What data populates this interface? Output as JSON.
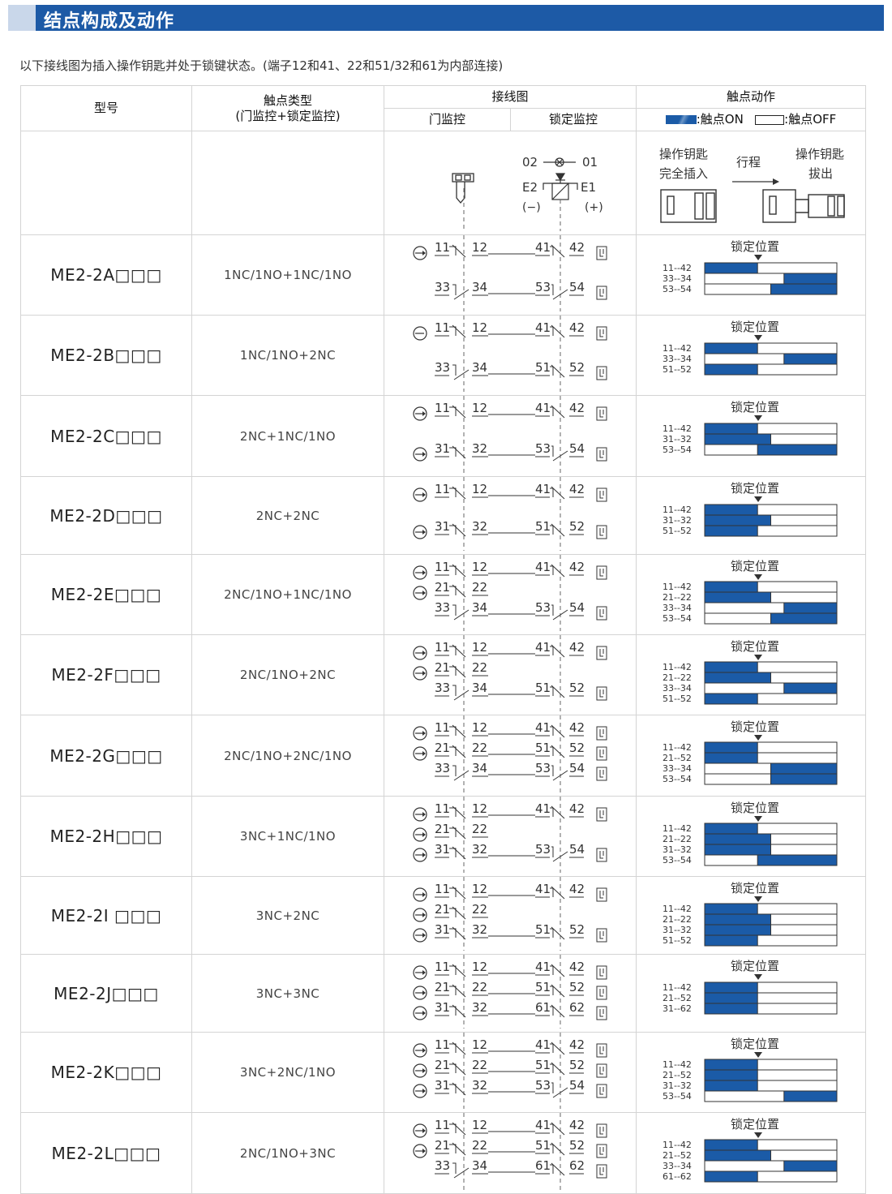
{
  "title": "结点构成及动作",
  "intro": "以下接线图为插入操作钥匙并处于锁键状态。(端子12和41、22和51/32和61为内部连接)",
  "header": {
    "model": "型号",
    "contact_type_1": "触点类型",
    "contact_type_2": "(门监控+锁定监控)",
    "wiring": "接线图",
    "door_monitor": "门监控",
    "lock_monitor": "锁定监控",
    "action": "触点动作",
    "legend_on": ":触点ON",
    "legend_off": ":触点OFF"
  },
  "diagram_header": {
    "t02": "02",
    "t01": "01",
    "e2": "E2",
    "e1": "E1",
    "minus": "(−)",
    "plus": "(+)",
    "key_inserted_1": "操作钥匙",
    "key_inserted_2": "完全插入",
    "stroke": "行程",
    "key_removed_1": "操作钥匙",
    "key_removed_2": "拔出"
  },
  "lock_position": "锁定位置",
  "rows": [
    {
      "model": "ME2-2A□□□",
      "type": "1NC/1NO+1NC/1NO",
      "lines": [
        {
          "door": "11 12",
          "sym": "nc",
          "lock": "41 42",
          "lsym": "nc"
        },
        {
          "door": "33 34",
          "sym": "no",
          "lock": "53 54",
          "lsym": "no"
        }
      ],
      "labels": [
        "11--42",
        "33--34",
        "53--54"
      ],
      "bars": [
        [
          0,
          0.4
        ],
        [
          0.6,
          1
        ],
        [
          0.5,
          1
        ]
      ]
    },
    {
      "model": "ME2-2B□□□",
      "type": "1NC/1NO+2NC",
      "lines": [
        {
          "door": "11 12",
          "sym": "nc",
          "lock": "41 42",
          "lsym": "nc"
        },
        {
          "door": "33 34",
          "sym": "no",
          "lock": "51 52",
          "lsym": "nc"
        }
      ],
      "labels": [
        "11--42",
        "33--34",
        "51--52"
      ],
      "bars": [
        [
          0,
          0.4
        ],
        [
          0.6,
          1
        ],
        [
          0,
          0.4
        ]
      ]
    },
    {
      "model": "ME2-2C□□□",
      "type": "2NC+1NC/1NO",
      "lines": [
        {
          "door": "11 12",
          "sym": "nc",
          "lock": "41 42",
          "lsym": "nc"
        },
        {
          "door": "31 32",
          "sym": "nc",
          "lock": "53 54",
          "lsym": "no"
        }
      ],
      "labels": [
        "11--42",
        "31--32",
        "53--54"
      ],
      "bars": [
        [
          0,
          0.4
        ],
        [
          0,
          0.5
        ],
        [
          0.4,
          1
        ]
      ]
    },
    {
      "model": "ME2-2D□□□",
      "type": "2NC+2NC",
      "lines": [
        {
          "door": "11 12",
          "sym": "nc",
          "lock": "41 42",
          "lsym": "nc"
        },
        {
          "door": "31 32",
          "sym": "nc",
          "lock": "51 52",
          "lsym": "nc"
        }
      ],
      "labels": [
        "11--42",
        "31--32",
        "51--52"
      ],
      "bars": [
        [
          0,
          0.4
        ],
        [
          0,
          0.5
        ],
        [
          0,
          0.4
        ]
      ]
    },
    {
      "model": "ME2-2E□□□",
      "type": "2NC/1NO+1NC/1NO",
      "lines": [
        {
          "door": "11 12",
          "sym": "nc",
          "lock": "41 42",
          "lsym": "nc"
        },
        {
          "door": "21 22",
          "sym": "nc",
          "lock": "",
          "lsym": ""
        },
        {
          "door": "33 34",
          "sym": "no",
          "lock": "53 54",
          "lsym": "no"
        }
      ],
      "labels": [
        "11--42",
        "21--22",
        "33--34",
        "53--54"
      ],
      "bars": [
        [
          0,
          0.4
        ],
        [
          0,
          0.5
        ],
        [
          0.6,
          1
        ],
        [
          0.5,
          1
        ]
      ]
    },
    {
      "model": "ME2-2F□□□",
      "type": "2NC/1NO+2NC",
      "lines": [
        {
          "door": "11 12",
          "sym": "nc",
          "lock": "41 42",
          "lsym": "nc"
        },
        {
          "door": "21 22",
          "sym": "nc",
          "lock": "",
          "lsym": ""
        },
        {
          "door": "33 34",
          "sym": "no",
          "lock": "51 52",
          "lsym": "nc"
        }
      ],
      "labels": [
        "11--42",
        "21--22",
        "33--34",
        "51--52"
      ],
      "bars": [
        [
          0,
          0.4
        ],
        [
          0,
          0.5
        ],
        [
          0.6,
          1
        ],
        [
          0,
          0.4
        ]
      ]
    },
    {
      "model": "ME2-2G□□□",
      "type": "2NC/1NO+2NC/1NO",
      "lines": [
        {
          "door": "11 12",
          "sym": "nc",
          "lock": "41 42",
          "lsym": "nc"
        },
        {
          "door": "21 22",
          "sym": "nc",
          "lock": "51 52",
          "lsym": "nc"
        },
        {
          "door": "33 34",
          "sym": "no",
          "lock": "53 54",
          "lsym": "no"
        }
      ],
      "labels": [
        "11--42",
        "21--52",
        "33--34",
        "53--54"
      ],
      "bars": [
        [
          0,
          0.4
        ],
        [
          0,
          0.4
        ],
        [
          0.5,
          1
        ],
        [
          0.5,
          1
        ]
      ]
    },
    {
      "model": "ME2-2H□□□",
      "type": "3NC+1NC/1NO",
      "lines": [
        {
          "door": "11 12",
          "sym": "nc",
          "lock": "41 42",
          "lsym": "nc"
        },
        {
          "door": "21 22",
          "sym": "nc",
          "lock": "",
          "lsym": ""
        },
        {
          "door": "31 32",
          "sym": "nc",
          "lock": "53 54",
          "lsym": "no"
        }
      ],
      "labels": [
        "11--42",
        "21--22",
        "31--32",
        "53--54"
      ],
      "bars": [
        [
          0,
          0.4
        ],
        [
          0,
          0.5
        ],
        [
          0,
          0.5
        ],
        [
          0.4,
          1
        ]
      ]
    },
    {
      "model": "ME2-2I □□□",
      "type": "3NC+2NC",
      "lines": [
        {
          "door": "11 12",
          "sym": "nc",
          "lock": "41 42",
          "lsym": "nc"
        },
        {
          "door": "21 22",
          "sym": "nc",
          "lock": "",
          "lsym": ""
        },
        {
          "door": "31 32",
          "sym": "nc",
          "lock": "51 52",
          "lsym": "nc"
        }
      ],
      "labels": [
        "11--42",
        "21--22",
        "31--32",
        "51--52"
      ],
      "bars": [
        [
          0,
          0.4
        ],
        [
          0,
          0.5
        ],
        [
          0,
          0.5
        ],
        [
          0,
          0.4
        ]
      ]
    },
    {
      "model": "ME2-2J□□□",
      "type": "3NC+3NC",
      "lines": [
        {
          "door": "11 12",
          "sym": "nc",
          "lock": "41 42",
          "lsym": "nc"
        },
        {
          "door": "21 22",
          "sym": "nc",
          "lock": "51 52",
          "lsym": "nc"
        },
        {
          "door": "31 32",
          "sym": "nc",
          "lock": "61 62",
          "lsym": "nc"
        }
      ],
      "labels": [
        "11--42",
        "21--52",
        "31--62"
      ],
      "bars": [
        [
          0,
          0.4
        ],
        [
          0,
          0.4
        ],
        [
          0,
          0.4
        ]
      ]
    },
    {
      "model": "ME2-2K□□□",
      "type": "3NC+2NC/1NO",
      "lines": [
        {
          "door": "11 12",
          "sym": "nc",
          "lock": "41 42",
          "lsym": "nc"
        },
        {
          "door": "21 22",
          "sym": "nc",
          "lock": "51 52",
          "lsym": "nc"
        },
        {
          "door": "31 32",
          "sym": "nc",
          "lock": "53 54",
          "lsym": "no"
        }
      ],
      "labels": [
        "11--42",
        "21--52",
        "31--32",
        "53--54"
      ],
      "bars": [
        [
          0,
          0.4
        ],
        [
          0,
          0.4
        ],
        [
          0,
          0.4
        ],
        [
          0.6,
          1
        ]
      ]
    },
    {
      "model": "ME2-2L□□□",
      "type": "2NC/1NO+3NC",
      "lines": [
        {
          "door": "11 12",
          "sym": "nc",
          "lock": "41 42",
          "lsym": "nc"
        },
        {
          "door": "21 22",
          "sym": "nc",
          "lock": "51 52",
          "lsym": "nc"
        },
        {
          "door": "33 34",
          "sym": "no",
          "lock": "61 62",
          "lsym": "nc"
        }
      ],
      "labels": [
        "11--42",
        "21--52",
        "33--34",
        "61--62"
      ],
      "bars": [
        [
          0,
          0.4
        ],
        [
          0,
          0.5
        ],
        [
          0.6,
          1
        ],
        [
          0,
          0.4
        ]
      ]
    }
  ],
  "colors": {
    "accent": "#1d5aa6",
    "on": "#1b5ba7"
  }
}
